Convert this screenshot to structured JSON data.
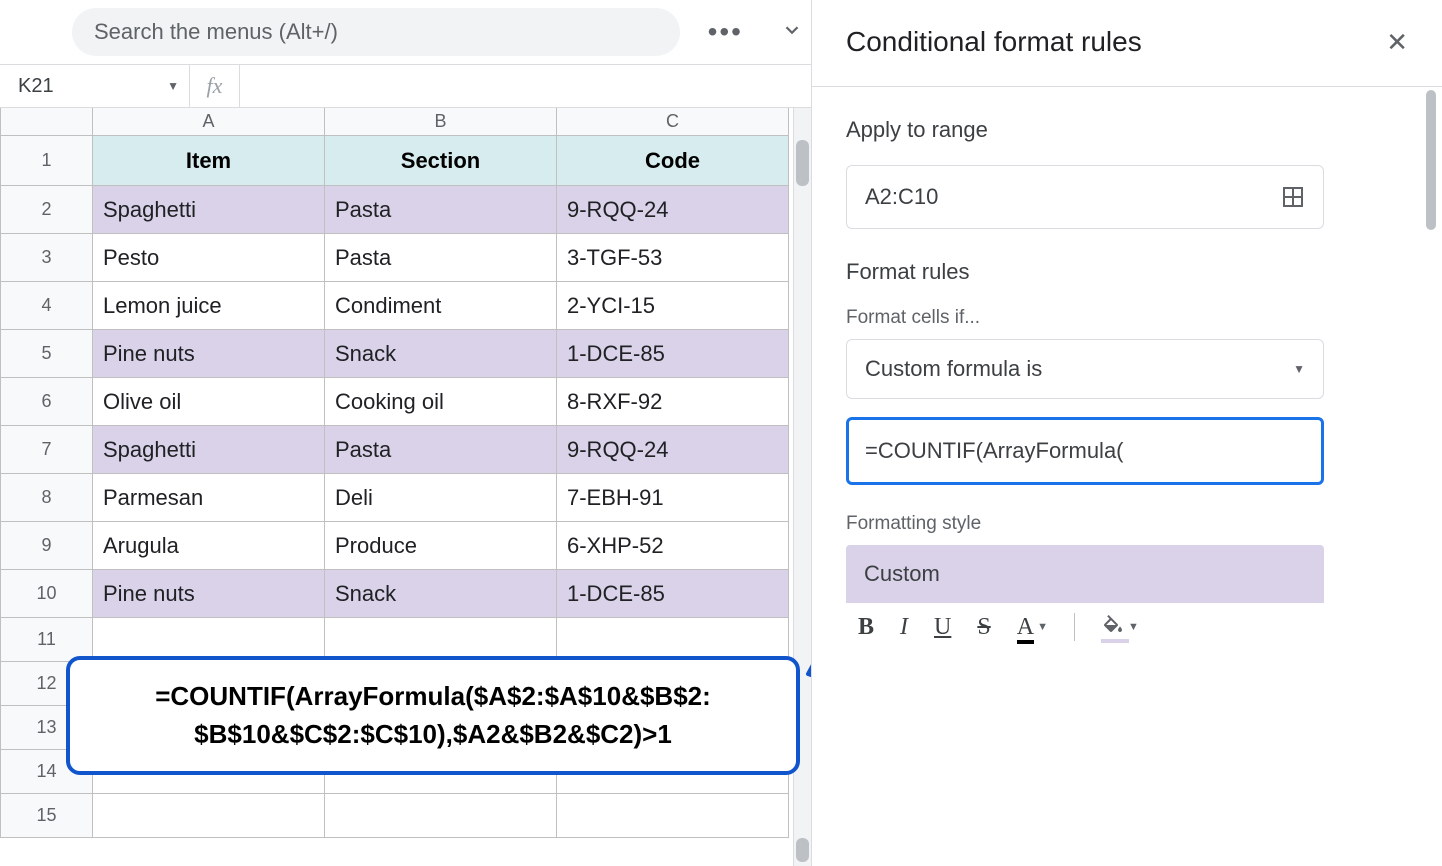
{
  "search": {
    "placeholder": "Search the menus (Alt+/)"
  },
  "namebox": {
    "ref": "K21"
  },
  "fx_label": "fx",
  "columns": [
    "A",
    "B",
    "C"
  ],
  "row_numbers": [
    "1",
    "2",
    "3",
    "4",
    "5",
    "6",
    "7",
    "8",
    "9",
    "10",
    "11",
    "12",
    "13",
    "14",
    "15"
  ],
  "headers": {
    "A": "Item",
    "B": "Section",
    "C": "Code"
  },
  "data_rows": [
    {
      "A": "Spaghetti",
      "B": "Pasta",
      "C": "9-RQQ-24",
      "hl": true
    },
    {
      "A": "Pesto",
      "B": "Pasta",
      "C": "3-TGF-53",
      "hl": false
    },
    {
      "A": "Lemon juice",
      "B": "Condiment",
      "C": "2-YCI-15",
      "hl": false
    },
    {
      "A": "Pine nuts",
      "B": "Snack",
      "C": "1-DCE-85",
      "hl": true
    },
    {
      "A": "Olive oil",
      "B": "Cooking oil",
      "C": "8-RXF-92",
      "hl": false
    },
    {
      "A": "Spaghetti",
      "B": "Pasta",
      "C": "9-RQQ-24",
      "hl": true
    },
    {
      "A": "Parmesan",
      "B": "Deli",
      "C": "7-EBH-91",
      "hl": false
    },
    {
      "A": "Arugula",
      "B": "Produce",
      "C": "6-XHP-52",
      "hl": false
    },
    {
      "A": "Pine nuts",
      "B": "Snack",
      "C": "1-DCE-85",
      "hl": true
    }
  ],
  "callout_line1": "=COUNTIF(ArrayFormula($A$2:$A$10&$B$2:",
  "callout_line2": "$B$10&$C$2:$C$10),$A2&$B2&$C2)>1",
  "panel": {
    "title": "Conditional format rules",
    "apply_label": "Apply to range",
    "range": "A2:C10",
    "rules_label": "Format rules",
    "cells_if_label": "Format cells if...",
    "condition": "Custom formula is",
    "formula_input": "=COUNTIF(ArrayFormula(",
    "style_label": "Formatting style",
    "style_name": "Custom",
    "toolbar": {
      "bold": "B",
      "italic": "I",
      "underline": "U",
      "strike": "S",
      "textcolor": "A"
    }
  },
  "colors": {
    "highlight": "#d9d2e9",
    "header_bg": "#d9ead3",
    "accent_blue": "#1155cc",
    "focus_blue": "#1a73e8"
  }
}
